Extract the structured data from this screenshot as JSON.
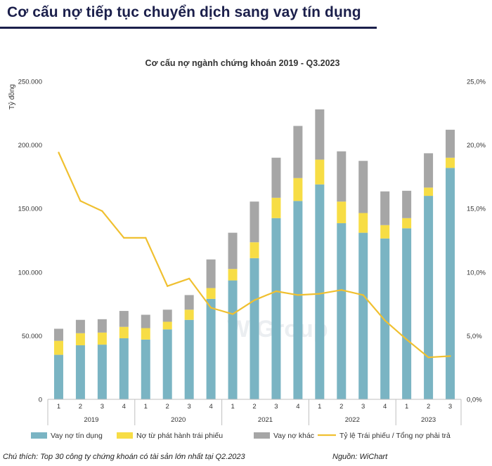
{
  "page": {
    "title": "Cơ cấu nợ tiếp tục chuyển dịch sang vay tín dụng",
    "note": "Chú thích: Top 30 công ty chứng khoán có tài sản lớn nhất tại Q2.2023",
    "source": "Nguồn: WiChart",
    "watermark": "WiGroup"
  },
  "colors": {
    "title": "#1b1f4b",
    "credit": "#7ab4c3",
    "bond": "#f7dd45",
    "other": "#a6a6a6",
    "ratio": "#f0c030"
  },
  "chart_data": {
    "type": "bar",
    "stacked": true,
    "title": "Cơ cấu nợ ngành chứng khoán 2019 - Q3.2023",
    "ylabel": "Tỷ đồng",
    "ylim": [
      0,
      250000
    ],
    "y_ticks": [
      "0",
      "50.000",
      "100.000",
      "150.000",
      "200.000",
      "250.000"
    ],
    "y2lim": [
      0,
      25
    ],
    "y2_ticks": [
      "0,0%",
      "5,0%",
      "10,0%",
      "15,0%",
      "20,0%",
      "25,0%"
    ],
    "grid": false,
    "legend_position": "bottom",
    "categories": [
      "1",
      "2",
      "3",
      "4",
      "1",
      "2",
      "3",
      "4",
      "1",
      "2",
      "3",
      "4",
      "1",
      "2",
      "3",
      "4",
      "1",
      "2",
      "3"
    ],
    "groups": [
      {
        "label": "2019",
        "count": 4
      },
      {
        "label": "2020",
        "count": 4
      },
      {
        "label": "2021",
        "count": 4
      },
      {
        "label": "2022",
        "count": 4
      },
      {
        "label": "2023",
        "count": 3
      }
    ],
    "series": [
      {
        "name": "Vay nợ tín dụng",
        "type": "bar",
        "values": [
          35000,
          42500,
          43000,
          48000,
          47000,
          55000,
          62500,
          79000,
          93500,
          111000,
          142500,
          156000,
          169000,
          138500,
          131000,
          126500,
          134500,
          160000,
          182000
        ]
      },
      {
        "name": "Nợ từ phát hành trái phiếu",
        "type": "bar",
        "values": [
          11000,
          9500,
          9500,
          9000,
          9000,
          6000,
          8000,
          8500,
          9000,
          12500,
          16000,
          18000,
          19500,
          17000,
          15500,
          10500,
          8000,
          6500,
          8000
        ]
      },
      {
        "name": "Vay nợ khác",
        "type": "bar",
        "values": [
          9500,
          10500,
          10500,
          12500,
          10500,
          9500,
          11500,
          22500,
          28500,
          32000,
          31500,
          41000,
          39500,
          39500,
          41000,
          26500,
          21500,
          27000,
          22000
        ]
      },
      {
        "name": "Tỷ lệ Trái phiếu / Tổng nợ phải trả",
        "type": "line",
        "axis": "right",
        "values": [
          19.4,
          15.6,
          14.8,
          12.7,
          12.7,
          8.9,
          9.5,
          7.2,
          6.7,
          7.8,
          8.5,
          8.2,
          8.3,
          8.6,
          8.2,
          6.2,
          4.7,
          3.3,
          3.4
        ]
      }
    ]
  }
}
